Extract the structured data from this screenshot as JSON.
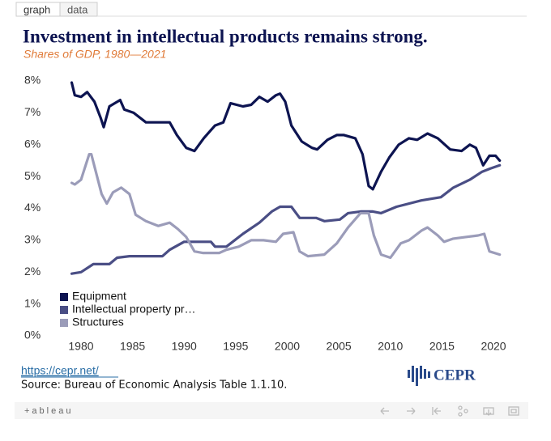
{
  "tabs": [
    "graph",
    "data"
  ],
  "chart_data": {
    "type": "line",
    "title": "Investment in intellectual products remains strong.",
    "subtitle": "Shares of GDP, 1980—2021",
    "xlim": [
      1978,
      2022
    ],
    "xticks": [
      1980,
      1985,
      1990,
      1995,
      2000,
      2005,
      2010,
      2015,
      2020
    ],
    "ylim": [
      0,
      8
    ],
    "yticks": [
      {
        "value": 0,
        "label": "0%"
      },
      {
        "value": 1,
        "label": "1%"
      },
      {
        "value": 2,
        "label": "2%"
      },
      {
        "value": 3,
        "label": "3%"
      },
      {
        "value": 4,
        "label": "4%"
      },
      {
        "value": 5,
        "label": "5%"
      },
      {
        "value": 6,
        "label": "6%"
      },
      {
        "value": 7,
        "label": "7%"
      },
      {
        "value": 8,
        "label": "8%"
      }
    ],
    "grid": false,
    "legend": "lower-left",
    "series": [
      {
        "name": "Equipment",
        "color": "#0d1451",
        "x": [
          1979.1,
          1979.4,
          1980,
          1980.6,
          1981.3,
          1981.9,
          1982.2,
          1982.75,
          1983.8,
          1984.2,
          1985.1,
          1986.3,
          1988.6,
          1989.3,
          1990.2,
          1991,
          1991.9,
          1993,
          1993.8,
          1994.5,
          1995.7,
          1996.5,
          1997.3,
          1998.1,
          1998.9,
          1999.3,
          1999.8,
          2000.4,
          2001.4,
          2002.4,
          2002.9,
          2003.9,
          2004.8,
          2005.5,
          2006.6,
          2007.3,
          2007.9,
          2008.3,
          2009.1,
          2009.9,
          2010.8,
          2011.8,
          2012.6,
          2013.6,
          2014.6,
          2015.8,
          2016.9,
          2017.7,
          2018.3,
          2019,
          2019.6,
          2020.2,
          2020.6
        ],
        "values": [
          7.95,
          7.55,
          7.5,
          7.65,
          7.35,
          6.85,
          6.55,
          7.2,
          7.4,
          7.1,
          7.0,
          6.7,
          6.7,
          6.3,
          5.9,
          5.8,
          6.2,
          6.6,
          6.7,
          7.3,
          7.2,
          7.25,
          7.5,
          7.35,
          7.55,
          7.6,
          7.35,
          6.6,
          6.1,
          5.9,
          5.85,
          6.15,
          6.3,
          6.3,
          6.2,
          5.7,
          4.7,
          4.6,
          5.15,
          5.6,
          6.0,
          6.2,
          6.15,
          6.35,
          6.2,
          5.85,
          5.8,
          6.0,
          5.9,
          5.35,
          5.65,
          5.65,
          5.5
        ]
      },
      {
        "name": "Intellectual property pr…",
        "color": "#4a4e85",
        "x": [
          1979.1,
          1980,
          1981.2,
          1982.75,
          1983.5,
          1984.7,
          1987.9,
          1988.6,
          1990,
          1992.6,
          1993,
          1994.1,
          1995.7,
          1997.3,
          1998.5,
          1999.3,
          2000.4,
          2001.2,
          2002.8,
          2003.6,
          2005.1,
          2005.9,
          2007.1,
          2008.3,
          2009.1,
          2010.6,
          2013,
          2014.9,
          2016.1,
          2017.7,
          2018.9,
          2019.7,
          2020.6
        ],
        "values": [
          1.95,
          2.0,
          2.25,
          2.25,
          2.45,
          2.5,
          2.5,
          2.7,
          2.95,
          2.95,
          2.8,
          2.8,
          3.2,
          3.55,
          3.9,
          4.05,
          4.05,
          3.7,
          3.7,
          3.6,
          3.65,
          3.85,
          3.9,
          3.9,
          3.85,
          4.05,
          4.25,
          4.35,
          4.65,
          4.9,
          5.15,
          5.25,
          5.35
        ]
      },
      {
        "name": "Structures",
        "color": "#9b9cb9",
        "x": [
          1979.1,
          1979.4,
          1980,
          1980.3,
          1980.8,
          1981,
          1981.4,
          1982,
          1982.5,
          1983.1,
          1983.9,
          1984.7,
          1985.3,
          1986.3,
          1987.5,
          1988.6,
          1989.4,
          1990.2,
          1991,
          1991.8,
          1993.4,
          1994.1,
          1995.3,
          1996.5,
          1997.7,
          1998.9,
          1999.6,
          2000.6,
          2001.2,
          2002,
          2003.6,
          2004.8,
          2005.9,
          2007.1,
          2007.9,
          2008.4,
          2009.1,
          2010,
          2011,
          2011.8,
          2013,
          2013.6,
          2014.6,
          2015.2,
          2016.1,
          2017.3,
          2018.5,
          2019.1,
          2019.6,
          2020.6
        ],
        "values": [
          4.8,
          4.75,
          4.9,
          5.2,
          5.7,
          5.7,
          5.2,
          4.45,
          4.15,
          4.5,
          4.65,
          4.45,
          3.8,
          3.6,
          3.45,
          3.55,
          3.35,
          3.1,
          2.65,
          2.6,
          2.6,
          2.7,
          2.8,
          3.0,
          3.0,
          2.95,
          3.2,
          3.25,
          2.65,
          2.5,
          2.55,
          2.9,
          3.4,
          3.85,
          3.85,
          3.15,
          2.55,
          2.45,
          2.9,
          3.0,
          3.3,
          3.4,
          3.15,
          2.95,
          3.05,
          3.1,
          3.15,
          3.2,
          2.65,
          2.55
        ]
      }
    ]
  },
  "footer": {
    "link": "https://cepr.net/",
    "source": "Source: Bureau of Economic Analysis Table 1.1.10.",
    "logo": "CEPR"
  },
  "toolbar": {
    "brand": "+ableau"
  }
}
